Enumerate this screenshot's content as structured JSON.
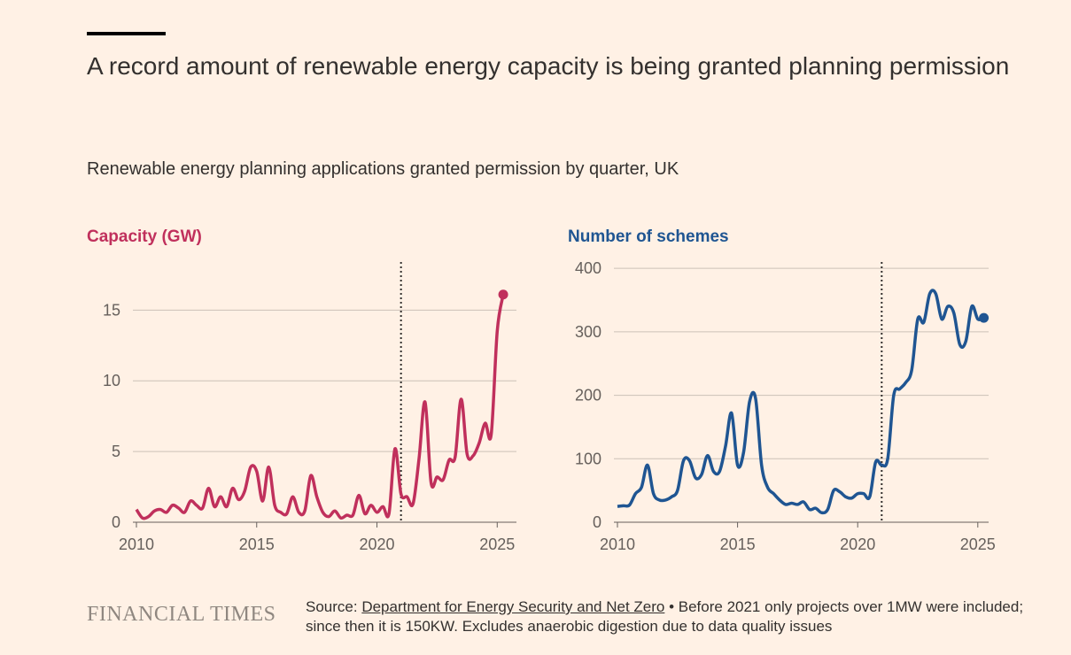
{
  "title": "A record amount of renewable energy capacity is being granted planning permission",
  "subtitle": "Renewable energy planning applications granted permission by quarter, UK",
  "chart_data": [
    {
      "type": "line",
      "title": "Capacity (GW)",
      "color": "#c0305c",
      "x": [
        2010,
        2010.25,
        2010.5,
        2010.75,
        2011,
        2011.25,
        2011.5,
        2011.75,
        2012,
        2012.25,
        2012.5,
        2012.75,
        2013,
        2013.25,
        2013.5,
        2013.75,
        2014,
        2014.25,
        2014.5,
        2014.75,
        2015,
        2015.25,
        2015.5,
        2015.75,
        2016,
        2016.25,
        2016.5,
        2016.75,
        2017,
        2017.25,
        2017.5,
        2017.75,
        2018,
        2018.25,
        2018.5,
        2018.75,
        2019,
        2019.25,
        2019.5,
        2019.75,
        2020,
        2020.25,
        2020.5,
        2020.75,
        2021,
        2021.25,
        2021.5,
        2021.75,
        2022,
        2022.25,
        2022.5,
        2022.75,
        2023,
        2023.25,
        2023.5,
        2023.75,
        2024,
        2024.25,
        2024.5,
        2024.75,
        2025,
        2025.25
      ],
      "values": [
        0.9,
        0.3,
        0.4,
        0.8,
        0.9,
        0.7,
        1.2,
        1.0,
        0.7,
        1.5,
        1.2,
        1.0,
        2.4,
        1.1,
        1.8,
        1.1,
        2.4,
        1.6,
        2.2,
        3.9,
        3.6,
        1.5,
        3.9,
        1.2,
        0.7,
        0.6,
        1.8,
        0.7,
        0.8,
        3.3,
        1.8,
        0.7,
        0.4,
        0.8,
        0.3,
        0.5,
        0.5,
        1.9,
        0.6,
        1.2,
        0.7,
        1.1,
        0.6,
        5.2,
        2.0,
        1.8,
        1.3,
        4.5,
        8.5,
        2.8,
        3.2,
        3.0,
        4.4,
        4.6,
        8.7,
        4.8,
        4.7,
        5.6,
        7.0,
        6.2,
        13.5,
        16.1
      ],
      "xlim": [
        2010,
        2025.8
      ],
      "ylim": [
        0,
        18.4
      ],
      "xticks": [
        2010,
        2015,
        2020,
        2025
      ],
      "yticks": [
        0,
        5,
        10,
        15
      ],
      "vline": 2021,
      "grid": true
    },
    {
      "type": "line",
      "title": "Number of schemes",
      "color": "#1f5592",
      "x": [
        2010,
        2010.25,
        2010.5,
        2010.75,
        2011,
        2011.25,
        2011.5,
        2011.75,
        2012,
        2012.25,
        2012.5,
        2012.75,
        2013,
        2013.25,
        2013.5,
        2013.75,
        2014,
        2014.25,
        2014.5,
        2014.75,
        2015,
        2015.25,
        2015.5,
        2015.75,
        2016,
        2016.25,
        2016.5,
        2016.75,
        2017,
        2017.25,
        2017.5,
        2017.75,
        2018,
        2018.25,
        2018.5,
        2018.75,
        2019,
        2019.25,
        2019.5,
        2019.75,
        2020,
        2020.25,
        2020.5,
        2020.75,
        2021,
        2021.25,
        2021.5,
        2021.75,
        2022,
        2022.25,
        2022.5,
        2022.75,
        2023,
        2023.25,
        2023.5,
        2023.75,
        2024,
        2024.25,
        2024.5,
        2024.75,
        2025,
        2025.25
      ],
      "values": [
        25,
        26,
        27,
        45,
        55,
        90,
        45,
        35,
        35,
        40,
        50,
        97,
        97,
        70,
        75,
        105,
        80,
        80,
        120,
        172,
        90,
        110,
        190,
        195,
        90,
        55,
        45,
        35,
        28,
        30,
        28,
        32,
        20,
        22,
        15,
        20,
        50,
        48,
        40,
        38,
        45,
        45,
        40,
        95,
        90,
        100,
        200,
        210,
        220,
        240,
        320,
        315,
        360,
        360,
        320,
        340,
        330,
        280,
        285,
        340,
        320,
        322
      ],
      "xlim": [
        2010,
        2025.45
      ],
      "ylim": [
        0,
        410
      ],
      "xticks": [
        2010,
        2015,
        2020,
        2025
      ],
      "yticks": [
        0,
        100,
        200,
        300,
        400
      ],
      "vline": 2021,
      "grid": true
    }
  ],
  "footer": {
    "logo": "FINANCIAL TIMES",
    "source_prefix": "Source: ",
    "source_link": "Department for Energy Security and Net Zero",
    "note": " • Before 2021 only projects over 1MW were included; since then it is 150KW. Excludes anaerobic digestion due to data quality issues"
  }
}
